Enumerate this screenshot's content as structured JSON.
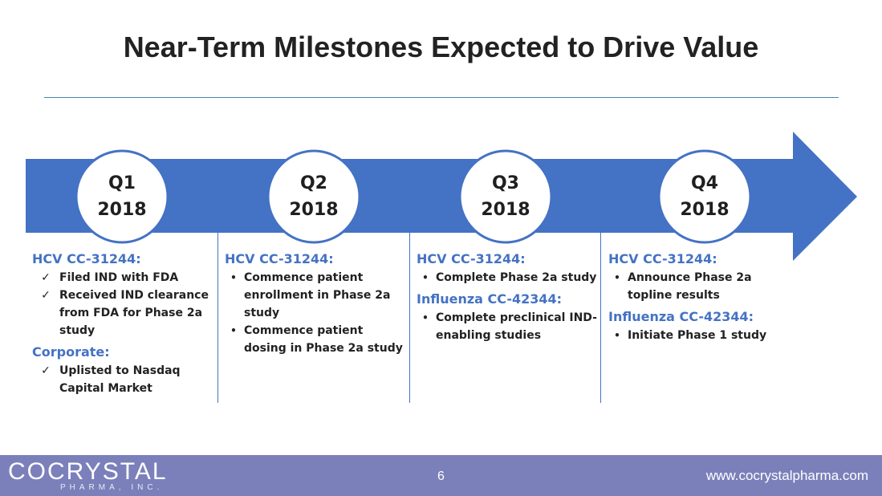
{
  "slide": {
    "title": "Near-Term Milestones Expected to Drive Value"
  },
  "colors": {
    "accent": "#4472c4",
    "footer": "#7b80bb",
    "rule": "#3f8ca8"
  },
  "timeline": {
    "quarters": [
      {
        "quarter": "Q1",
        "year": "2018"
      },
      {
        "quarter": "Q2",
        "year": "2018"
      },
      {
        "quarter": "Q3",
        "year": "2018"
      },
      {
        "quarter": "Q4",
        "year": "2018"
      }
    ]
  },
  "columns": [
    {
      "sections": [
        {
          "heading": "HCV CC-31244:",
          "marker": "check",
          "items": [
            "Filed IND with FDA",
            "Received IND clearance from FDA for Phase 2a study"
          ]
        },
        {
          "heading": "Corporate:",
          "marker": "check",
          "items": [
            "Uplisted to Nasdaq Capital Market"
          ]
        }
      ]
    },
    {
      "sections": [
        {
          "heading": "HCV CC-31244:",
          "marker": "bullet",
          "items": [
            "Commence patient enrollment in Phase 2a study",
            "Commence patient dosing in Phase 2a study"
          ]
        }
      ]
    },
    {
      "sections": [
        {
          "heading": "HCV CC-31244:",
          "marker": "bullet",
          "items": [
            "Complete Phase 2a study"
          ]
        },
        {
          "heading": "Influenza CC-42344:",
          "marker": "bullet",
          "items": [
            "Complete preclinical IND-enabling studies"
          ]
        }
      ]
    },
    {
      "sections": [
        {
          "heading": "HCV CC-31244:",
          "marker": "bullet",
          "items": [
            "Announce Phase 2a topline results"
          ]
        },
        {
          "heading": "Influenza CC-42344:",
          "marker": "bullet",
          "items": [
            "Initiate Phase 1 study"
          ]
        }
      ]
    }
  ],
  "footer": {
    "logo_main": "COCRYSTAL",
    "logo_sub": "PHARMA, INC.",
    "page_number": "6",
    "website": "www.cocrystalpharma.com"
  }
}
